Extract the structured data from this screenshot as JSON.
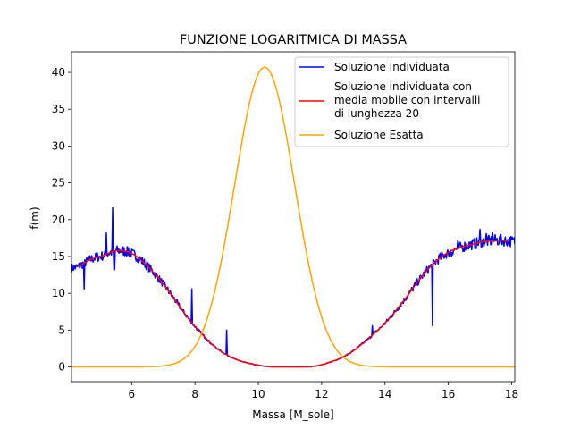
{
  "chart_data": {
    "type": "line",
    "title": "FUNZIONE LOGARITMICA DI MASSA",
    "xlabel": "Massa [M_sole]",
    "ylabel": "f(m)",
    "xlim": [
      4.1,
      18.1
    ],
    "ylim": [
      -2,
      42.8
    ],
    "xticks": [
      6,
      8,
      10,
      12,
      14,
      16,
      18
    ],
    "yticks": [
      0,
      5,
      10,
      15,
      20,
      25,
      30,
      35,
      40
    ],
    "grid": false,
    "legend_position": "top-right",
    "series": [
      {
        "name": "Soluzione Individuata",
        "color": "#0000ff",
        "x": [
          4.1,
          4.3,
          4.5,
          4.7,
          4.9,
          5.1,
          5.3,
          5.5,
          5.7,
          5.9,
          6.1,
          6.3,
          6.5,
          6.7,
          6.9,
          7.1,
          7.3,
          7.5,
          7.7,
          7.9,
          8.1,
          8.3,
          8.5,
          8.7,
          8.9,
          9.1,
          9.3,
          9.5,
          9.7,
          9.9,
          10.1,
          10.3,
          10.5,
          10.7,
          10.9,
          11.1,
          11.3,
          11.5,
          11.7,
          11.9,
          12.1,
          12.3,
          12.5,
          12.7,
          12.9,
          13.1,
          13.3,
          13.5,
          13.7,
          13.9,
          14.1,
          14.3,
          14.5,
          14.7,
          14.9,
          15.1,
          15.3,
          15.5,
          15.7,
          15.9,
          16.1,
          16.3,
          16.5,
          16.7,
          16.9,
          17.1,
          17.3,
          17.5,
          17.7,
          17.9,
          18.1
        ],
        "values": [
          13.4,
          13.6,
          14.1,
          14.6,
          14.9,
          15.1,
          15.5,
          15.8,
          15.8,
          15.6,
          15.2,
          14.5,
          13.7,
          12.8,
          11.8,
          10.7,
          9.5,
          8.3,
          7.1,
          6.0,
          5.0,
          4.1,
          3.2,
          2.5,
          1.9,
          1.4,
          1.0,
          0.7,
          0.5,
          0.3,
          0.15,
          0.05,
          0.0,
          0.0,
          0.0,
          0.0,
          0.0,
          0.0,
          0.05,
          0.2,
          0.4,
          0.7,
          1.0,
          1.4,
          1.9,
          2.5,
          3.2,
          3.9,
          4.7,
          5.5,
          6.4,
          7.4,
          8.5,
          9.6,
          10.8,
          11.9,
          13.0,
          13.9,
          14.7,
          15.3,
          15.8,
          16.1,
          16.4,
          16.6,
          16.8,
          17.0,
          17.1,
          17.2,
          17.2,
          17.1,
          17.0
        ],
        "spikes": [
          [
            4.5,
            10.6
          ],
          [
            4.9,
            15.5
          ],
          [
            5.2,
            18.2
          ],
          [
            5.4,
            21.6
          ],
          [
            5.45,
            13.2
          ],
          [
            5.9,
            16.2
          ],
          [
            7.9,
            10.6
          ],
          [
            9.0,
            5.0
          ],
          [
            13.6,
            5.6
          ],
          [
            15.5,
            5.6
          ],
          [
            16.0,
            15.5
          ],
          [
            16.1,
            15.0
          ],
          [
            16.3,
            17.2
          ],
          [
            17.0,
            18.7
          ],
          [
            17.2,
            18.1
          ],
          [
            17.4,
            18.2
          ]
        ]
      },
      {
        "name": "Soluzione individuata con media mobile con intervalli di lunghezza 20",
        "legend_lines": [
          "Soluzione individuata con",
          "media mobile con intervalli",
          "di lunghezza 20"
        ],
        "color": "#ff0000",
        "x": [
          4.3,
          4.5,
          4.7,
          4.9,
          5.1,
          5.3,
          5.5,
          5.7,
          5.9,
          6.1,
          6.3,
          6.5,
          6.7,
          6.9,
          7.1,
          7.3,
          7.5,
          7.7,
          7.9,
          8.1,
          8.3,
          8.5,
          8.7,
          8.9,
          9.1,
          9.3,
          9.5,
          9.7,
          9.9,
          10.1,
          10.3,
          10.5,
          10.7,
          10.9,
          11.1,
          11.3,
          11.5,
          11.7,
          11.9,
          12.1,
          12.3,
          12.5,
          12.7,
          12.9,
          13.1,
          13.3,
          13.5,
          13.7,
          13.9,
          14.1,
          14.3,
          14.5,
          14.7,
          14.9,
          15.1,
          15.3,
          15.5,
          15.7,
          15.9,
          16.1,
          16.3,
          16.5,
          16.7,
          16.9,
          17.1,
          17.3,
          17.5,
          17.7,
          17.9
        ],
        "values": [
          13.6,
          14.1,
          14.6,
          14.9,
          15.1,
          15.5,
          15.8,
          15.8,
          15.6,
          15.2,
          14.5,
          13.7,
          12.8,
          11.8,
          10.7,
          9.5,
          8.3,
          7.1,
          6.0,
          5.0,
          4.1,
          3.2,
          2.5,
          1.9,
          1.4,
          1.0,
          0.7,
          0.5,
          0.3,
          0.15,
          0.05,
          0.0,
          0.0,
          0.0,
          0.0,
          0.0,
          0.0,
          0.05,
          0.2,
          0.4,
          0.7,
          1.0,
          1.4,
          1.9,
          2.5,
          3.2,
          3.9,
          4.7,
          5.5,
          6.4,
          7.4,
          8.5,
          9.6,
          10.8,
          11.9,
          13.0,
          13.9,
          14.7,
          15.3,
          15.8,
          16.1,
          16.4,
          16.6,
          16.8,
          17.0,
          17.1,
          17.2,
          17.2,
          17.1
        ]
      },
      {
        "name": "Soluzione Esatta",
        "color": "#ffa500",
        "gaussian": {
          "peak": 40.7,
          "mean": 10.2,
          "sigma": 0.95
        }
      }
    ]
  }
}
